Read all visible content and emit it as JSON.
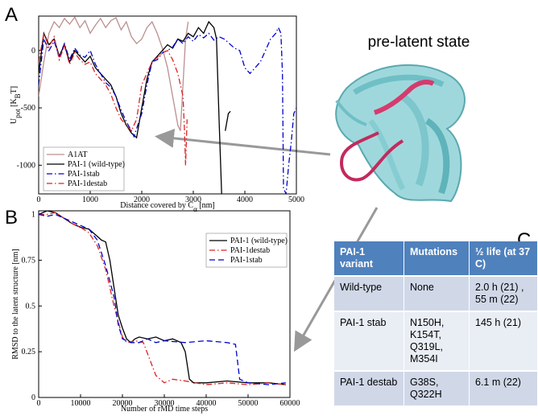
{
  "panels": [
    "A",
    "B",
    "C"
  ],
  "image_label": "pre-latent state",
  "chart_data": [
    {
      "type": "line",
      "ylabel": [
        "U",
        "pot",
        " [K",
        "B",
        "T]"
      ],
      "xlabel": [
        "Distance covered by C",
        "α",
        " [nm]"
      ],
      "xlim": [
        0,
        5000
      ],
      "ylim": [
        -1250,
        300
      ],
      "xticks": [
        0,
        1000,
        2000,
        3000,
        4000,
        5000
      ],
      "yticks": [
        -1000,
        -500,
        0
      ],
      "legend": "lower left",
      "series": [
        {
          "name": "A1AT",
          "color": "#bc8f8f",
          "style": "solid",
          "x": [
            0,
            100,
            200,
            300,
            400,
            500,
            600,
            700,
            800,
            900,
            1000,
            1100,
            1200,
            1300,
            1400,
            1500,
            1600,
            1700,
            1800,
            1900,
            2000,
            2100,
            2200,
            2300,
            2400,
            2500,
            2600,
            2700,
            2750,
            2800,
            2850,
            2900
          ],
          "values": [
            -400,
            -100,
            150,
            250,
            200,
            280,
            230,
            290,
            200,
            260,
            150,
            220,
            280,
            200,
            260,
            285,
            180,
            250,
            120,
            60,
            100,
            200,
            250,
            150,
            20,
            -150,
            -400,
            -650,
            -700,
            -300,
            100,
            250
          ]
        },
        {
          "name": "PAI-1 (wild-type)",
          "color": "#000000",
          "style": "solid",
          "x": [
            0,
            100,
            200,
            300,
            400,
            500,
            600,
            700,
            800,
            900,
            1000,
            1100,
            1200,
            1300,
            1400,
            1500,
            1600,
            1700,
            1800,
            1900,
            2000,
            2100,
            2200,
            2300,
            2400,
            2500,
            2600,
            2700,
            2800,
            2900,
            3000,
            3100,
            3200,
            3300,
            3400,
            3450,
            3500,
            3550,
            3590,
            3620,
            3680,
            3720
          ],
          "values": [
            -200,
            150,
            50,
            100,
            -50,
            50,
            -100,
            0,
            -50,
            -100,
            -50,
            -150,
            -200,
            -250,
            -300,
            -400,
            -550,
            -650,
            -720,
            -760,
            -500,
            -250,
            -100,
            -50,
            0,
            50,
            20,
            100,
            80,
            150,
            120,
            200,
            150,
            250,
            200,
            100,
            -600,
            -1250,
            null,
            -700,
            -550,
            -530
          ]
        },
        {
          "name": "PAI-1stab",
          "color": "#0000cc",
          "style": "dashdot",
          "x": [
            0,
            100,
            200,
            300,
            400,
            500,
            600,
            700,
            800,
            900,
            1000,
            1100,
            1200,
            1300,
            1400,
            1500,
            1600,
            1700,
            1800,
            1850,
            1900,
            2000,
            2100,
            2200,
            2300,
            2400,
            2500,
            2600,
            2700,
            2800,
            2900,
            3000,
            3100,
            3200,
            3300,
            3400,
            3500,
            3600,
            3700,
            3800,
            3900,
            4000,
            4100,
            4200,
            4300,
            4400,
            4500,
            4600,
            4650,
            4700,
            4730,
            4750,
            4800,
            4850,
            4900,
            4950,
            5000
          ],
          "values": [
            -300,
            100,
            0,
            80,
            -50,
            60,
            -80,
            20,
            -40,
            -60,
            0,
            -120,
            -200,
            -280,
            -320,
            -400,
            -520,
            -620,
            -700,
            -750,
            -680,
            -550,
            -300,
            -100,
            -80,
            -20,
            0,
            30,
            100,
            60,
            120,
            80,
            140,
            110,
            150,
            90,
            120,
            100,
            60,
            20,
            0,
            -150,
            -200,
            -150,
            -100,
            0,
            100,
            150,
            200,
            150,
            -200,
            -1200,
            -1250,
            -1000,
            -800,
            -550,
            -500
          ]
        },
        {
          "name": "PAI-1destab",
          "color": "#dd2222",
          "style": "dashdot",
          "x": [
            0,
            100,
            200,
            300,
            400,
            500,
            600,
            700,
            800,
            900,
            1000,
            1100,
            1200,
            1300,
            1400,
            1500,
            1600,
            1700,
            1800,
            1900,
            2000,
            2100,
            2200,
            2300,
            2400,
            2500,
            2600,
            2700,
            2750,
            2800,
            2830,
            2850,
            2880
          ],
          "values": [
            -100,
            150,
            30,
            120,
            -80,
            40,
            -120,
            -20,
            -80,
            -120,
            -100,
            -200,
            -250,
            -300,
            -380,
            -500,
            -600,
            -650,
            -700,
            -600,
            -300,
            -200,
            -100,
            -60,
            -20,
            0,
            -80,
            -200,
            -300,
            -400,
            -700,
            -1000,
            -600
          ]
        }
      ]
    },
    {
      "type": "line",
      "ylabel": [
        "RMSD to the latent structure [nm]"
      ],
      "xlabel": [
        "Number of rMD time steps"
      ],
      "xlim": [
        0,
        60000
      ],
      "ylim": [
        0,
        1.02
      ],
      "xticks": [
        0,
        10000,
        20000,
        30000,
        40000,
        50000,
        60000
      ],
      "yticks": [
        0,
        0.25,
        0.5,
        0.75,
        1
      ],
      "legend": "upper right",
      "series": [
        {
          "name": "PAI-1 (wild-type)",
          "color": "#000000",
          "style": "solid",
          "x": [
            0,
            2000,
            4000,
            6000,
            8000,
            10000,
            12000,
            14000,
            15000,
            16000,
            17000,
            18000,
            19000,
            20000,
            21000,
            22000,
            23000,
            24000,
            26000,
            28000,
            30000,
            32000,
            34000,
            35000,
            36000,
            37000,
            40000,
            45000,
            50000,
            55000,
            59000
          ],
          "values": [
            1,
            1.02,
            1.01,
            0.98,
            0.95,
            0.93,
            0.92,
            0.88,
            0.86,
            0.85,
            0.75,
            0.6,
            0.45,
            0.38,
            0.32,
            0.3,
            0.32,
            0.33,
            0.32,
            0.33,
            0.31,
            0.32,
            0.3,
            0.25,
            0.1,
            0.08,
            0.08,
            0.09,
            0.08,
            0.08,
            0.07
          ]
        },
        {
          "name": "PAI-1destab",
          "color": "#dd2222",
          "style": "dashdot",
          "x": [
            0,
            2000,
            4000,
            6000,
            8000,
            10000,
            12000,
            14000,
            16000,
            18000,
            20000,
            21000,
            23000,
            25000,
            27000,
            28000,
            30000,
            32000,
            35000,
            40000,
            45000,
            50000,
            55000,
            59000
          ],
          "values": [
            1,
            1.0,
            1.01,
            0.98,
            0.95,
            0.93,
            0.9,
            0.83,
            0.7,
            0.5,
            0.33,
            0.3,
            0.31,
            0.3,
            0.18,
            0.12,
            0.08,
            0.1,
            0.09,
            0.07,
            0.08,
            0.07,
            0.08,
            0.07
          ]
        },
        {
          "name": "PAI-1stab",
          "color": "#0000cc",
          "style": "dashed",
          "x": [
            0,
            2000,
            4000,
            6000,
            8000,
            10000,
            12000,
            14000,
            16000,
            18000,
            19000,
            20000,
            22000,
            24000,
            26000,
            28000,
            30000,
            35000,
            40000,
            45000,
            47000,
            48000,
            50000,
            55000,
            59000
          ],
          "values": [
            1,
            0.99,
            1.0,
            0.98,
            0.96,
            0.94,
            0.92,
            0.86,
            0.72,
            0.55,
            0.4,
            0.32,
            0.3,
            0.3,
            0.32,
            0.3,
            0.31,
            0.3,
            0.31,
            0.3,
            0.29,
            0.1,
            0.08,
            0.07,
            0.08
          ]
        }
      ]
    }
  ],
  "table": {
    "header": [
      "PAI-1 variant",
      "Mutations",
      "½ life (at 37 C)"
    ],
    "rows": [
      [
        "Wild-type",
        "None",
        "2.0 h (21) , 55 m (22)"
      ],
      [
        "PAI-1 stab",
        "N150H, K154T, Q319L, M354I",
        "145 h (21)"
      ],
      [
        "PAI-1 destab",
        "G38S, Q322H",
        "6.1 m (22)"
      ]
    ]
  }
}
